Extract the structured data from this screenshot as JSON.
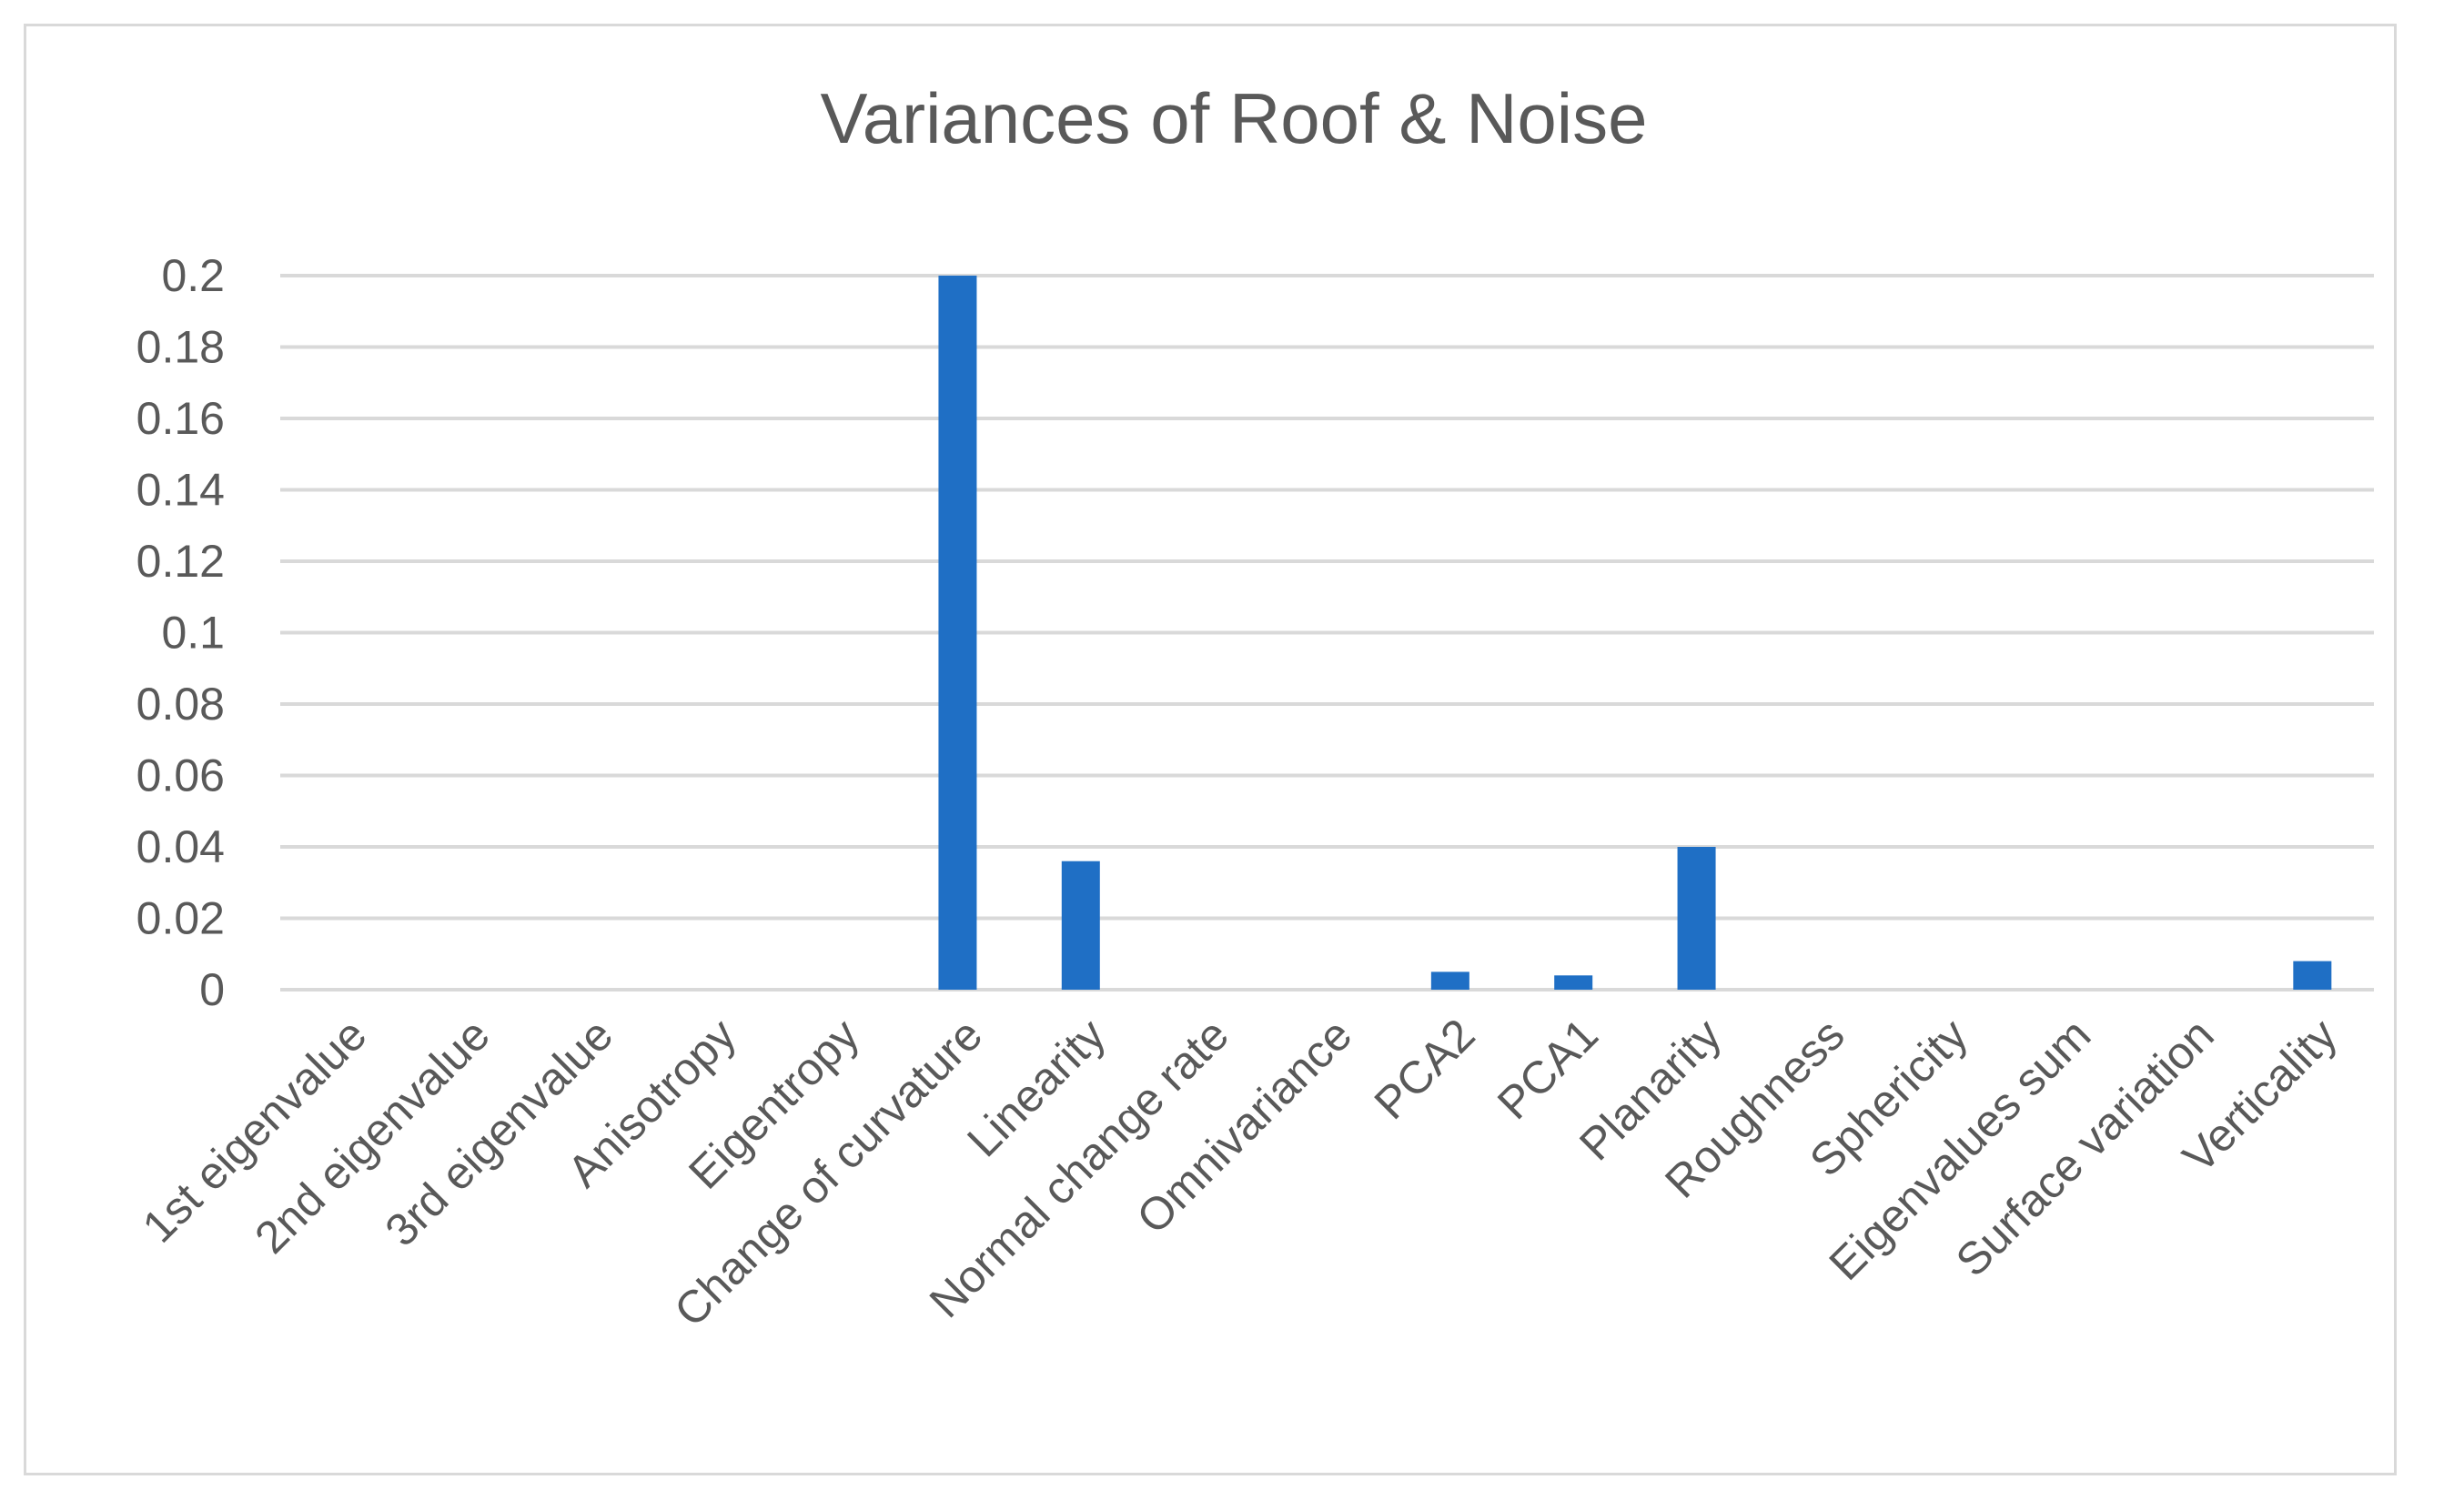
{
  "chart_data": {
    "type": "bar",
    "title": "Variances of Roof & Noise",
    "xlabel": "",
    "ylabel": "",
    "ylim": [
      0,
      0.2
    ],
    "yticks": [
      {
        "value": 0,
        "label": "0"
      },
      {
        "value": 0.02,
        "label": "0.02"
      },
      {
        "value": 0.04,
        "label": "0.04"
      },
      {
        "value": 0.06,
        "label": "0.06"
      },
      {
        "value": 0.08,
        "label": "0.08"
      },
      {
        "value": 0.1,
        "label": "0.1"
      },
      {
        "value": 0.12,
        "label": "0.12"
      },
      {
        "value": 0.14,
        "label": "0.14"
      },
      {
        "value": 0.16,
        "label": "0.16"
      },
      {
        "value": 0.18,
        "label": "0.18"
      },
      {
        "value": 0.2,
        "label": "0.2"
      }
    ],
    "grid": true,
    "legend": "none",
    "bar_color": "#1F6FC5",
    "categories": [
      "1st eigenvalue",
      "2nd eigenvalue",
      "3rd eigenvalue",
      "Anisotropy",
      "Eigentropy",
      "Change of curvature",
      "Linearity",
      "Normal change rate",
      "Omnivariance",
      "PCA2",
      "PCA1",
      "Planarity",
      "Roughness",
      "Sphericity",
      "Eigenvalues sum",
      "Surface variation",
      "Verticality"
    ],
    "values": [
      0,
      0,
      0,
      0,
      0,
      0.2,
      0.036,
      0,
      0,
      0.005,
      0.004,
      0.04,
      0,
      0,
      0,
      0,
      0.008
    ]
  }
}
